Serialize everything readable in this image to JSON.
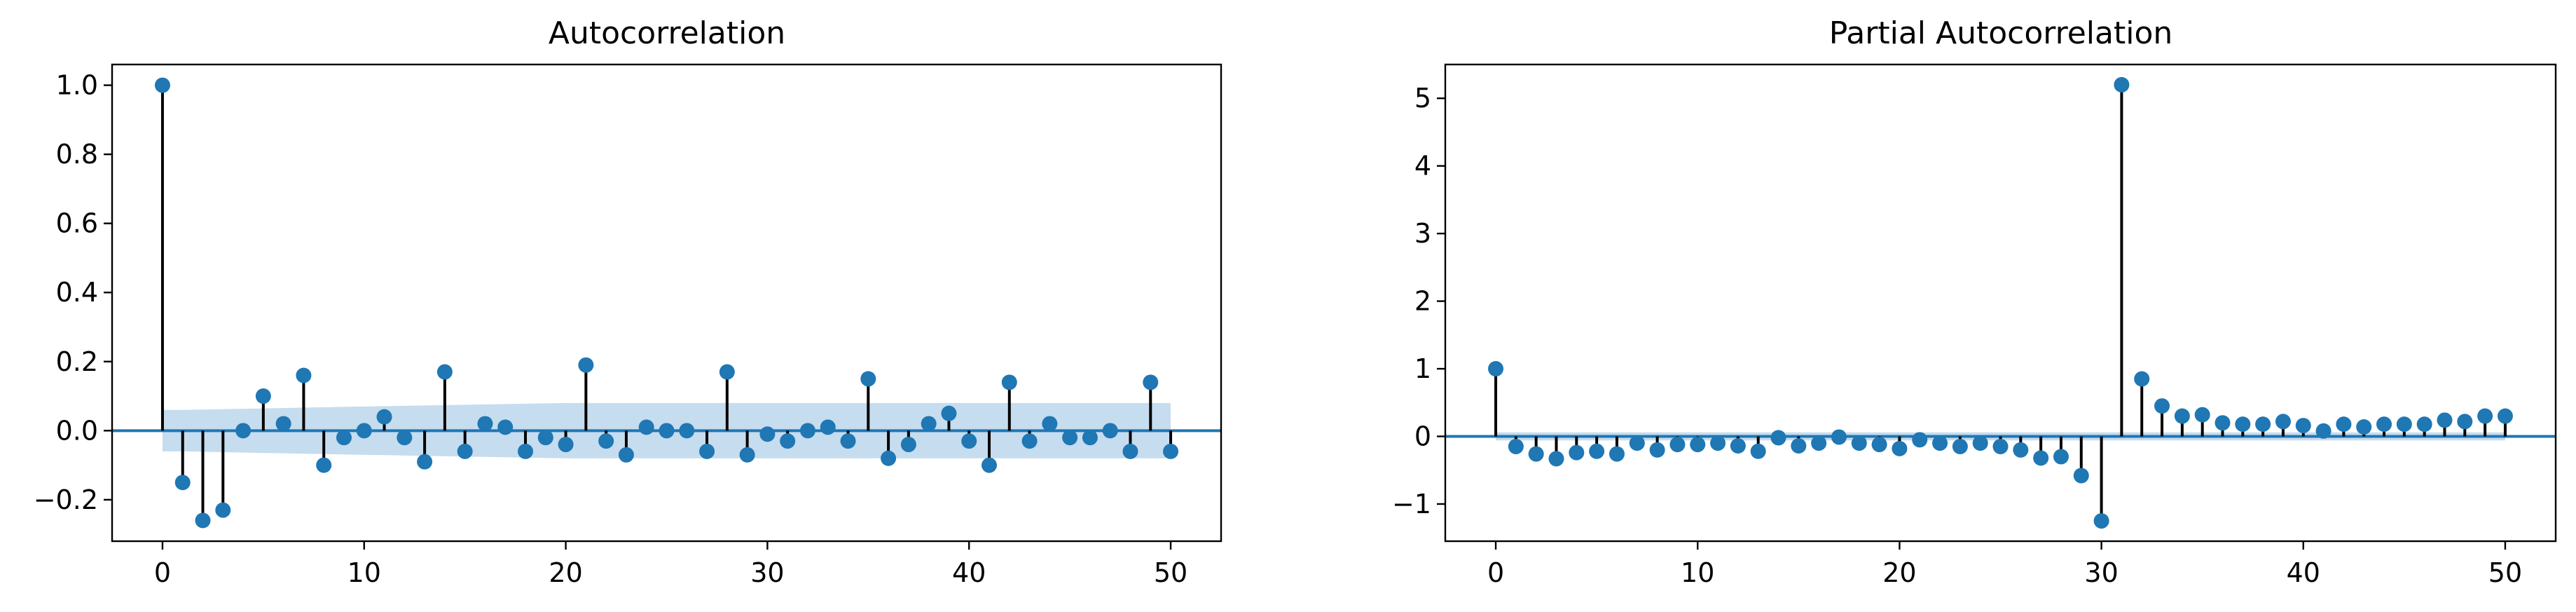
{
  "chart_data": [
    {
      "type": "stem",
      "title": "Autocorrelation",
      "xlabel": "",
      "ylabel": "",
      "xlim": [
        -2.5,
        52.5
      ],
      "ylim": [
        -0.32,
        1.06
      ],
      "xticks": [
        0,
        10,
        20,
        30,
        40,
        50
      ],
      "yticks": [
        -0.2,
        0.0,
        0.2,
        0.4,
        0.6,
        0.8,
        1.0
      ],
      "ytick_labels": [
        "−0.2",
        "0.0",
        "0.2",
        "0.4",
        "0.6",
        "0.8",
        "1.0"
      ],
      "confidence_band": {
        "lower": [
          -0.06,
          -0.06,
          -0.07,
          -0.08,
          -0.08,
          -0.08
        ],
        "upper": [
          0.06,
          0.06,
          0.07,
          0.08,
          0.08,
          0.08
        ],
        "at_lags": [
          0,
          1,
          10,
          20,
          30,
          50
        ]
      },
      "x": [
        0,
        1,
        2,
        3,
        4,
        5,
        6,
        7,
        8,
        9,
        10,
        11,
        12,
        13,
        14,
        15,
        16,
        17,
        18,
        19,
        20,
        21,
        22,
        23,
        24,
        25,
        26,
        27,
        28,
        29,
        30,
        31,
        32,
        33,
        34,
        35,
        36,
        37,
        38,
        39,
        40,
        41,
        42,
        43,
        44,
        45,
        46,
        47,
        48,
        49,
        50
      ],
      "values": [
        1.0,
        -0.15,
        -0.26,
        -0.23,
        0.0,
        0.1,
        0.02,
        0.16,
        -0.1,
        -0.02,
        0.0,
        0.04,
        -0.02,
        -0.09,
        0.17,
        -0.06,
        0.02,
        0.01,
        -0.06,
        -0.02,
        -0.04,
        0.19,
        -0.03,
        -0.07,
        0.01,
        0.0,
        0.0,
        -0.06,
        0.17,
        -0.07,
        -0.01,
        -0.03,
        0.0,
        0.01,
        -0.03,
        0.15,
        -0.08,
        -0.04,
        0.02,
        0.05,
        -0.03,
        -0.1,
        0.14,
        -0.03,
        0.02,
        -0.02,
        -0.02,
        0.0,
        -0.06,
        0.14,
        -0.06
      ]
    },
    {
      "type": "stem",
      "title": "Partial Autocorrelation",
      "xlabel": "",
      "ylabel": "",
      "xlim": [
        -2.5,
        52.5
      ],
      "ylim": [
        -1.55,
        5.5
      ],
      "xticks": [
        0,
        10,
        20,
        30,
        40,
        50
      ],
      "yticks": [
        -1,
        0,
        1,
        2,
        3,
        4,
        5
      ],
      "ytick_labels": [
        "−1",
        "0",
        "1",
        "2",
        "3",
        "4",
        "5"
      ],
      "confidence_band": {
        "lower": [
          -0.06,
          -0.06
        ],
        "upper": [
          0.06,
          0.06
        ],
        "at_lags": [
          0,
          50
        ]
      },
      "x": [
        0,
        1,
        2,
        3,
        4,
        5,
        6,
        7,
        8,
        9,
        10,
        11,
        12,
        13,
        14,
        15,
        16,
        17,
        18,
        19,
        20,
        21,
        22,
        23,
        24,
        25,
        26,
        27,
        28,
        29,
        30,
        31,
        32,
        33,
        34,
        35,
        36,
        37,
        38,
        39,
        40,
        41,
        42,
        43,
        44,
        45,
        46,
        47,
        48,
        49,
        50
      ],
      "values": [
        1.0,
        -0.15,
        -0.26,
        -0.33,
        -0.24,
        -0.22,
        -0.26,
        -0.1,
        -0.2,
        -0.12,
        -0.12,
        -0.1,
        -0.14,
        -0.22,
        -0.02,
        -0.14,
        -0.1,
        -0.01,
        -0.1,
        -0.12,
        -0.18,
        -0.05,
        -0.1,
        -0.15,
        -0.1,
        -0.15,
        -0.2,
        -0.32,
        -0.3,
        -0.58,
        -1.25,
        5.2,
        0.85,
        0.45,
        0.3,
        0.32,
        0.2,
        0.18,
        0.18,
        0.22,
        0.16,
        0.08,
        0.18,
        0.14,
        0.18,
        0.18,
        0.18,
        0.24,
        0.22,
        0.3,
        0.3
      ]
    }
  ]
}
